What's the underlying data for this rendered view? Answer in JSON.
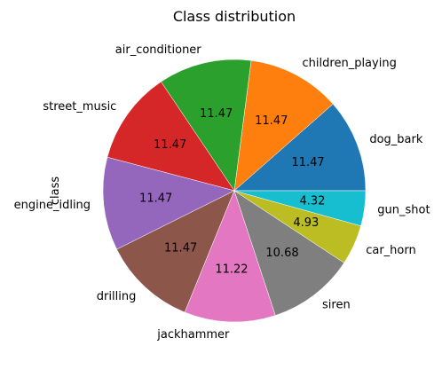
{
  "chart_data": {
    "type": "pie",
    "title": "Class distribution",
    "ylabel": "class",
    "start_angle_deg": 0,
    "direction": "counterclockwise",
    "slices": [
      {
        "label": "dog_bark",
        "value": 11.47,
        "pct_label": "11.47",
        "color": "#1f77b4"
      },
      {
        "label": "children_playing",
        "value": 11.47,
        "pct_label": "11.47",
        "color": "#ff7f0e"
      },
      {
        "label": "air_conditioner",
        "value": 11.47,
        "pct_label": "11.47",
        "color": "#2ca02c"
      },
      {
        "label": "street_music",
        "value": 11.47,
        "pct_label": "11.47",
        "color": "#d62728"
      },
      {
        "label": "engine_idling",
        "value": 11.47,
        "pct_label": "11.47",
        "color": "#9467bd"
      },
      {
        "label": "drilling",
        "value": 11.47,
        "pct_label": "11.47",
        "color": "#8c564b"
      },
      {
        "label": "jackhammer",
        "value": 11.22,
        "pct_label": "11.22",
        "color": "#e377c2"
      },
      {
        "label": "siren",
        "value": 10.68,
        "pct_label": "10.68",
        "color": "#7f7f7f"
      },
      {
        "label": "car_horn",
        "value": 4.93,
        "pct_label": "4.93",
        "color": "#bcbd22"
      },
      {
        "label": "gun_shot",
        "value": 4.32,
        "pct_label": "4.32",
        "color": "#17becf"
      }
    ]
  }
}
